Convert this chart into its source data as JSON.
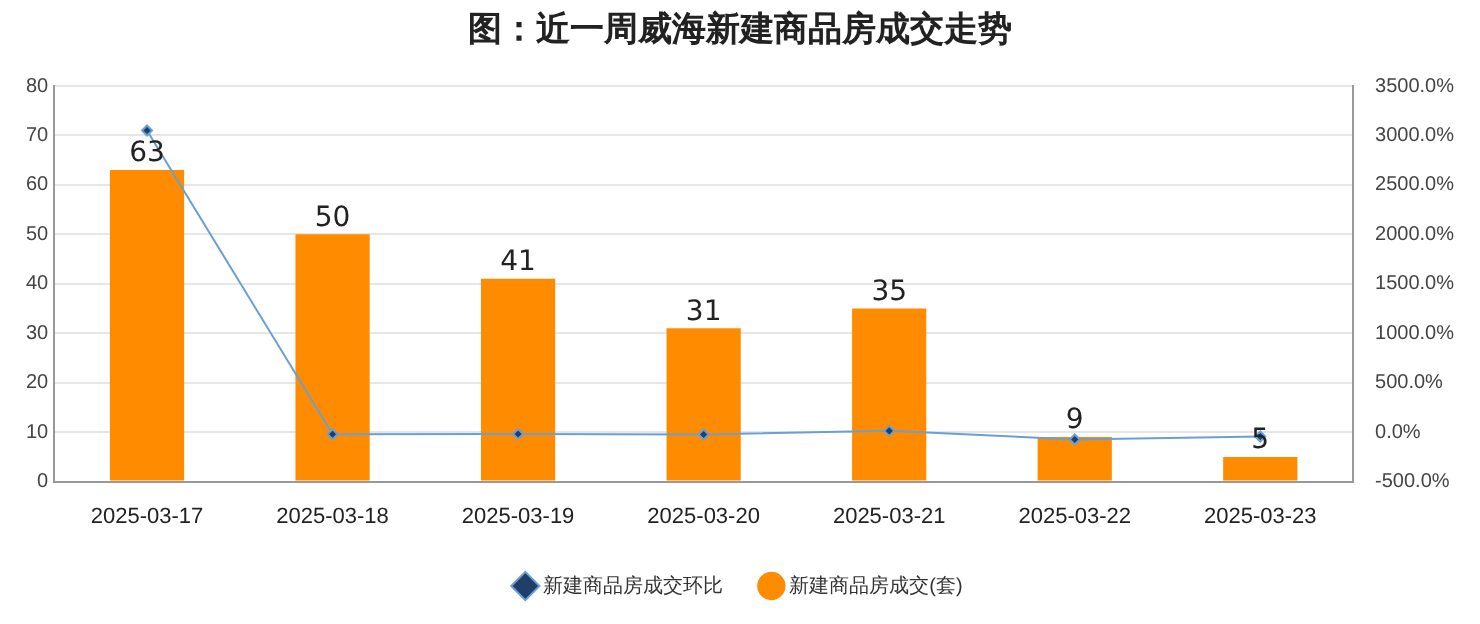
{
  "chart_data": {
    "type": "bar",
    "title": "图：近一周威海新建商品房成交走势",
    "categories": [
      "2025-03-17",
      "2025-03-18",
      "2025-03-19",
      "2025-03-20",
      "2025-03-21",
      "2025-03-22",
      "2025-03-23"
    ],
    "series": [
      {
        "name": "新建商品房成交(套)",
        "color": "#ff8c00",
        "values": [
          63,
          50,
          41,
          31,
          35,
          9,
          5
        ],
        "data_labels": true
      },
      {
        "name": "新建商品房成交环比",
        "type": "line",
        "axis": "y2",
        "color": "#6a9fd4",
        "marker": "diamond",
        "values": [
          3050,
          -21,
          -18,
          -24,
          13,
          -74,
          -44
        ]
      }
    ],
    "ylim": [
      0,
      80
    ],
    "yticks": [
      0,
      10,
      20,
      30,
      40,
      50,
      60,
      70,
      80
    ],
    "y2lim": [
      -500,
      3500
    ],
    "y2ticks": [
      {
        "value": -500,
        "label": "-500.0%"
      },
      {
        "value": 0,
        "label": "0.0%"
      },
      {
        "value": 500,
        "label": "500.0%"
      },
      {
        "value": 1000,
        "label": "1000.0%"
      },
      {
        "value": 1500,
        "label": "1500.0%"
      },
      {
        "value": 2000,
        "label": "2000.0%"
      },
      {
        "value": 2500,
        "label": "2500.0%"
      },
      {
        "value": 3000,
        "label": "3000.0%"
      },
      {
        "value": 3500,
        "label": "3500.0%"
      }
    ],
    "grid": "y",
    "legend": "bottom"
  }
}
